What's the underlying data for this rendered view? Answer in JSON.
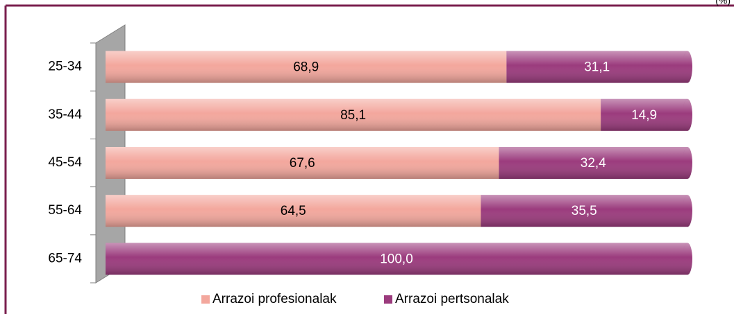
{
  "chart_data": {
    "type": "stacked-bar-horizontal",
    "unit_label": "(%)",
    "categories": [
      "25-34",
      "35-44",
      "45-54",
      "55-64",
      "65-74"
    ],
    "xlim": [
      0,
      100
    ],
    "series": [
      {
        "name": "Arrazoi profesionalak",
        "color": "#f3a79d",
        "label_color": "#000000",
        "values": [
          68.9,
          85.1,
          67.6,
          64.5,
          0
        ],
        "value_labels": [
          "68,9",
          "85,1",
          "67,6",
          "64,5",
          null
        ]
      },
      {
        "name": "Arrazoi pertsonalak",
        "color": "#9b3b7d",
        "label_color": "#ffffff",
        "values": [
          31.1,
          14.9,
          32.4,
          35.5,
          100
        ],
        "value_labels": [
          "31,1",
          "14,9",
          "32,4",
          "35,5",
          "100,0"
        ]
      }
    ],
    "legend": "bottom"
  }
}
